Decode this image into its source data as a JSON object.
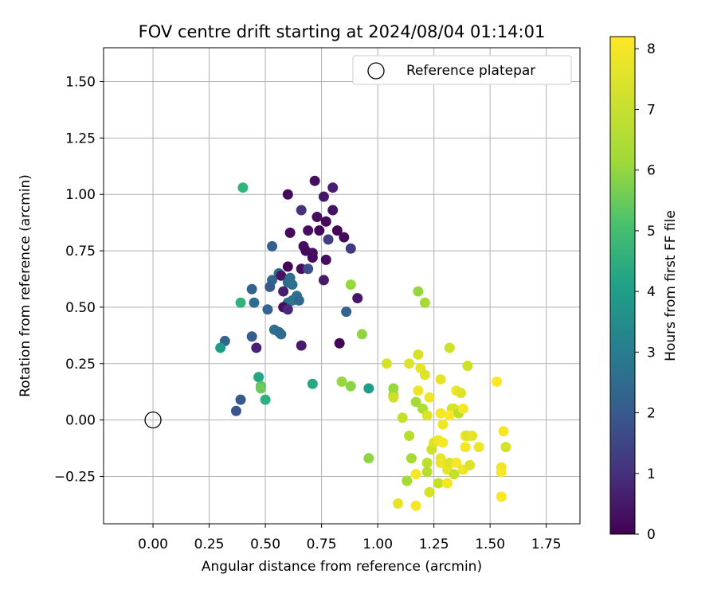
{
  "chart_data": {
    "type": "scatter",
    "title": "FOV centre drift starting at 2024/08/04 01:14:01",
    "xlabel": "Angular distance from reference (arcmin)",
    "ylabel": "Rotation from reference (arcmin)",
    "xlim": [
      -0.22,
      1.9
    ],
    "ylim": [
      -0.46,
      1.65
    ],
    "xticks": [
      0.0,
      0.25,
      0.5,
      0.75,
      1.0,
      1.25,
      1.5,
      1.75
    ],
    "xtick_labels": [
      "0.00",
      "0.25",
      "0.50",
      "0.75",
      "1.00",
      "1.25",
      "1.50",
      "1.75"
    ],
    "yticks": [
      -0.25,
      0.0,
      0.25,
      0.5,
      0.75,
      1.0,
      1.25,
      1.5
    ],
    "ytick_labels": [
      "−0.25",
      "0.00",
      "0.25",
      "0.50",
      "0.75",
      "1.00",
      "1.25",
      "1.50"
    ],
    "grid": true,
    "legend": {
      "placement": "top-right",
      "entries": [
        "Reference platepar"
      ]
    },
    "reference": {
      "x": 0.0,
      "y": 0.0
    },
    "colorbar": {
      "label": "Hours from first FF file",
      "cmap": "viridis",
      "range": [
        0,
        8.2
      ],
      "ticks": [
        0,
        1,
        2,
        3,
        4,
        5,
        6,
        7,
        8
      ],
      "tick_labels": [
        "0",
        "1",
        "2",
        "3",
        "4",
        "5",
        "6",
        "7",
        "8"
      ]
    },
    "points": [
      {
        "x": 0.72,
        "y": 1.06,
        "c": 0.3
      },
      {
        "x": 0.8,
        "y": 1.03,
        "c": 0.7
      },
      {
        "x": 0.6,
        "y": 1.0,
        "c": 0.2
      },
      {
        "x": 0.76,
        "y": 0.99,
        "c": 0.5
      },
      {
        "x": 0.66,
        "y": 0.93,
        "c": 1.2
      },
      {
        "x": 0.8,
        "y": 0.93,
        "c": 0.4
      },
      {
        "x": 0.73,
        "y": 0.9,
        "c": 0.3
      },
      {
        "x": 0.77,
        "y": 0.88,
        "c": 0.2
      },
      {
        "x": 0.69,
        "y": 0.84,
        "c": 0.3
      },
      {
        "x": 0.74,
        "y": 0.84,
        "c": 0.1
      },
      {
        "x": 0.82,
        "y": 0.84,
        "c": 0.1
      },
      {
        "x": 0.61,
        "y": 0.83,
        "c": 0.2
      },
      {
        "x": 0.85,
        "y": 0.81,
        "c": 0.2
      },
      {
        "x": 0.78,
        "y": 0.8,
        "c": 1.5
      },
      {
        "x": 0.67,
        "y": 0.77,
        "c": 0.3
      },
      {
        "x": 0.68,
        "y": 0.75,
        "c": 0.2
      },
      {
        "x": 0.53,
        "y": 0.77,
        "c": 2.5
      },
      {
        "x": 0.88,
        "y": 0.76,
        "c": 1.4
      },
      {
        "x": 0.71,
        "y": 0.74,
        "c": 0.3
      },
      {
        "x": 0.71,
        "y": 0.72,
        "c": 0.2
      },
      {
        "x": 0.77,
        "y": 0.71,
        "c": 0.3
      },
      {
        "x": 0.6,
        "y": 0.68,
        "c": 0.1
      },
      {
        "x": 0.66,
        "y": 0.67,
        "c": 0.3
      },
      {
        "x": 0.69,
        "y": 0.67,
        "c": 2.0
      },
      {
        "x": 0.56,
        "y": 0.65,
        "c": 2.9
      },
      {
        "x": 0.57,
        "y": 0.64,
        "c": 0.4
      },
      {
        "x": 0.61,
        "y": 0.63,
        "c": 3.0
      },
      {
        "x": 0.53,
        "y": 0.62,
        "c": 2.7
      },
      {
        "x": 0.76,
        "y": 0.62,
        "c": 0.6
      },
      {
        "x": 0.6,
        "y": 0.61,
        "c": 2.9
      },
      {
        "x": 0.62,
        "y": 0.6,
        "c": 3.0
      },
      {
        "x": 0.52,
        "y": 0.59,
        "c": 2.3
      },
      {
        "x": 0.44,
        "y": 0.58,
        "c": 2.6
      },
      {
        "x": 0.58,
        "y": 0.57,
        "c": 0.7
      },
      {
        "x": 0.64,
        "y": 0.55,
        "c": 3.0
      },
      {
        "x": 0.62,
        "y": 0.53,
        "c": 3.1
      },
      {
        "x": 0.65,
        "y": 0.53,
        "c": 2.7
      },
      {
        "x": 0.6,
        "y": 0.52,
        "c": 3.2
      },
      {
        "x": 0.45,
        "y": 0.52,
        "c": 2.9
      },
      {
        "x": 0.39,
        "y": 0.52,
        "c": 5.3
      },
      {
        "x": 0.58,
        "y": 0.5,
        "c": 0.3
      },
      {
        "x": 0.51,
        "y": 0.49,
        "c": 2.6
      },
      {
        "x": 0.6,
        "y": 0.49,
        "c": 0.9
      },
      {
        "x": 0.91,
        "y": 0.54,
        "c": 0.5
      },
      {
        "x": 0.86,
        "y": 0.48,
        "c": 2.6
      },
      {
        "x": 0.88,
        "y": 0.6,
        "c": 6.9
      },
      {
        "x": 0.54,
        "y": 0.4,
        "c": 3.0
      },
      {
        "x": 0.56,
        "y": 0.39,
        "c": 2.9
      },
      {
        "x": 0.57,
        "y": 0.38,
        "c": 2.8
      },
      {
        "x": 0.44,
        "y": 0.37,
        "c": 2.4
      },
      {
        "x": 0.32,
        "y": 0.35,
        "c": 2.6
      },
      {
        "x": 0.3,
        "y": 0.32,
        "c": 4.5
      },
      {
        "x": 0.46,
        "y": 0.32,
        "c": 0.8
      },
      {
        "x": 0.66,
        "y": 0.33,
        "c": 0.6
      },
      {
        "x": 0.83,
        "y": 0.34,
        "c": 0.1
      },
      {
        "x": 0.93,
        "y": 0.38,
        "c": 6.8
      },
      {
        "x": 0.4,
        "y": 1.03,
        "c": 5.4
      },
      {
        "x": 0.47,
        "y": 0.19,
        "c": 4.8
      },
      {
        "x": 0.48,
        "y": 0.15,
        "c": 5.9
      },
      {
        "x": 0.48,
        "y": 0.14,
        "c": 6.3
      },
      {
        "x": 0.5,
        "y": 0.09,
        "c": 5.2
      },
      {
        "x": 0.39,
        "y": 0.09,
        "c": 2.3
      },
      {
        "x": 0.37,
        "y": 0.04,
        "c": 2.1
      },
      {
        "x": 0.71,
        "y": 0.16,
        "c": 4.9
      },
      {
        "x": 0.84,
        "y": 0.17,
        "c": 6.9
      },
      {
        "x": 0.88,
        "y": 0.15,
        "c": 6.7
      },
      {
        "x": 0.96,
        "y": 0.14,
        "c": 4.6
      },
      {
        "x": 0.96,
        "y": -0.17,
        "c": 6.8
      },
      {
        "x": 1.18,
        "y": 0.57,
        "c": 6.9
      },
      {
        "x": 1.21,
        "y": 0.52,
        "c": 7.1
      },
      {
        "x": 1.04,
        "y": 0.25,
        "c": 7.7
      },
      {
        "x": 1.07,
        "y": 0.14,
        "c": 6.9
      },
      {
        "x": 1.07,
        "y": 0.11,
        "c": 7.0
      },
      {
        "x": 1.07,
        "y": 0.1,
        "c": 7.6
      },
      {
        "x": 1.11,
        "y": 0.01,
        "c": 7.5
      },
      {
        "x": 1.13,
        "y": -0.27,
        "c": 7.1
      },
      {
        "x": 1.09,
        "y": -0.37,
        "c": 7.9
      },
      {
        "x": 1.17,
        "y": -0.38,
        "c": 8.1
      },
      {
        "x": 1.14,
        "y": -0.07,
        "c": 7.3
      },
      {
        "x": 1.15,
        "y": -0.17,
        "c": 7.1
      },
      {
        "x": 1.14,
        "y": 0.25,
        "c": 7.8
      },
      {
        "x": 1.18,
        "y": 0.29,
        "c": 7.7
      },
      {
        "x": 1.19,
        "y": 0.23,
        "c": 7.9
      },
      {
        "x": 1.21,
        "y": 0.2,
        "c": 7.8
      },
      {
        "x": 1.17,
        "y": 0.08,
        "c": 7.1
      },
      {
        "x": 1.18,
        "y": 0.13,
        "c": 8.0
      },
      {
        "x": 1.2,
        "y": 0.05,
        "c": 7.2
      },
      {
        "x": 1.22,
        "y": 0.02,
        "c": 7.8
      },
      {
        "x": 1.23,
        "y": 0.1,
        "c": 8.0
      },
      {
        "x": 1.24,
        "y": -0.13,
        "c": 7.6
      },
      {
        "x": 1.25,
        "y": -0.1,
        "c": 7.8
      },
      {
        "x": 1.27,
        "y": -0.09,
        "c": 8.0
      },
      {
        "x": 1.22,
        "y": -0.19,
        "c": 7.4
      },
      {
        "x": 1.22,
        "y": -0.23,
        "c": 7.3
      },
      {
        "x": 1.17,
        "y": -0.24,
        "c": 8.1
      },
      {
        "x": 1.23,
        "y": -0.32,
        "c": 7.7
      },
      {
        "x": 1.27,
        "y": -0.28,
        "c": 7.5
      },
      {
        "x": 1.28,
        "y": -0.17,
        "c": 7.9
      },
      {
        "x": 1.28,
        "y": -0.19,
        "c": 8.0
      },
      {
        "x": 1.29,
        "y": -0.1,
        "c": 8.1
      },
      {
        "x": 1.29,
        "y": -0.02,
        "c": 8.0
      },
      {
        "x": 1.28,
        "y": 0.03,
        "c": 8.1
      },
      {
        "x": 1.28,
        "y": 0.18,
        "c": 7.9
      },
      {
        "x": 1.32,
        "y": 0.32,
        "c": 7.6
      },
      {
        "x": 1.31,
        "y": -0.28,
        "c": 8.1
      },
      {
        "x": 1.31,
        "y": -0.22,
        "c": 7.9
      },
      {
        "x": 1.32,
        "y": -0.19,
        "c": 7.8
      },
      {
        "x": 1.34,
        "y": -0.24,
        "c": 7.5
      },
      {
        "x": 1.35,
        "y": -0.19,
        "c": 8.1
      },
      {
        "x": 1.34,
        "y": 0.05,
        "c": 7.8
      },
      {
        "x": 1.33,
        "y": 0.05,
        "c": 7.7
      },
      {
        "x": 1.32,
        "y": 0.02,
        "c": 8.2
      },
      {
        "x": 1.35,
        "y": 0.13,
        "c": 8.0
      },
      {
        "x": 1.37,
        "y": 0.12,
        "c": 7.8
      },
      {
        "x": 1.36,
        "y": 0.03,
        "c": 7.4
      },
      {
        "x": 1.38,
        "y": 0.05,
        "c": 8.1
      },
      {
        "x": 1.39,
        "y": -0.07,
        "c": 8.0
      },
      {
        "x": 1.4,
        "y": -0.07,
        "c": 7.8
      },
      {
        "x": 1.42,
        "y": -0.07,
        "c": 7.9
      },
      {
        "x": 1.39,
        "y": -0.12,
        "c": 8.1
      },
      {
        "x": 1.38,
        "y": -0.22,
        "c": 8.0
      },
      {
        "x": 1.41,
        "y": -0.2,
        "c": 7.8
      },
      {
        "x": 1.45,
        "y": -0.12,
        "c": 8.0
      },
      {
        "x": 1.4,
        "y": 0.24,
        "c": 7.6
      },
      {
        "x": 1.53,
        "y": 0.17,
        "c": 8.2
      },
      {
        "x": 1.56,
        "y": -0.05,
        "c": 8.1
      },
      {
        "x": 1.57,
        "y": -0.12,
        "c": 7.7
      },
      {
        "x": 1.55,
        "y": -0.21,
        "c": 8.0
      },
      {
        "x": 1.55,
        "y": -0.23,
        "c": 8.1
      },
      {
        "x": 1.55,
        "y": -0.34,
        "c": 8.2
      }
    ]
  }
}
